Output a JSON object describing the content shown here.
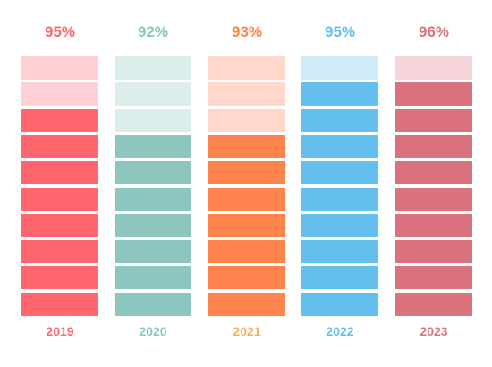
{
  "chart_data": {
    "type": "bar",
    "categories": [
      "2019",
      "2020",
      "2021",
      "2022",
      "2023"
    ],
    "values": [
      95,
      92,
      93,
      95,
      96
    ],
    "value_labels": [
      "95%",
      "92%",
      "93%",
      "95%",
      "96%"
    ],
    "segments_per_bar": 10,
    "filled_segments": [
      8,
      7,
      7,
      9,
      9
    ],
    "colors": {
      "filled": [
        "#ff666d",
        "#8cc6bf",
        "#ff834d",
        "#63bfec",
        "#da737d"
      ],
      "empty": [
        "#ffd1d5",
        "#dbeeeb",
        "#ffd8cb",
        "#d0ebf8",
        "#f6d5da"
      ],
      "label": [
        "#ff666d",
        "#8cc6bf",
        "#ff834d",
        "#63bfec",
        "#da737d"
      ],
      "year_label": [
        "#ff666d",
        "#8cc6bf",
        "#f2b35a",
        "#63bfec",
        "#da737d"
      ]
    }
  }
}
